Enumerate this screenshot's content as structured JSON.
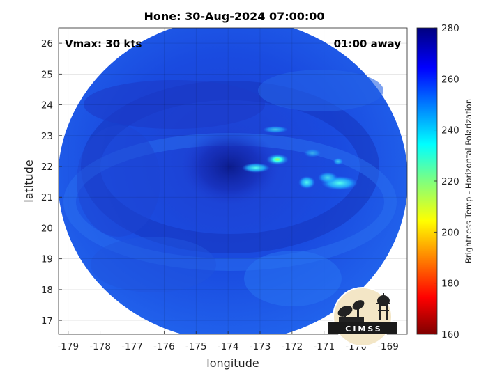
{
  "title": "Hone: 30-Aug-2024 07:00:00",
  "annotations": {
    "vmax": "Vmax: 30 kts",
    "time_away": "01:00 away"
  },
  "map": {
    "xlabel": "longitude",
    "ylabel": "latitude",
    "xlim": [
      -179.3,
      -168.4
    ],
    "ylim": [
      16.55,
      26.5
    ],
    "xticks": [
      -179,
      -178,
      -177,
      -176,
      -175,
      -174,
      -173,
      -172,
      -171,
      -170,
      -169
    ],
    "yticks": [
      17,
      18,
      19,
      20,
      21,
      22,
      23,
      24,
      25,
      26
    ],
    "grid": true
  },
  "colorbar": {
    "label": "Brightness Temp - Horizontal Polarization",
    "ticks": [
      160,
      180,
      200,
      220,
      240,
      260,
      280
    ],
    "range": [
      160,
      280
    ],
    "colormap": "jet",
    "colors": [
      "#7f0000",
      "#ff0000",
      "#ffff00",
      "#00ffff",
      "#0000ff",
      "#00007f"
    ]
  },
  "logo": {
    "text": "CIMSS"
  }
}
